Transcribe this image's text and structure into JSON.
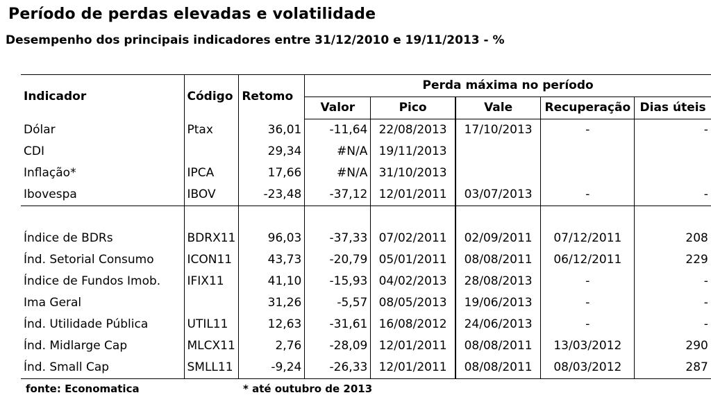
{
  "title": "Período de perdas elevadas e volatilidade",
  "subtitle": "Desempenho dos principais indicadores entre 31/12/2010 e 19/11/2013 - %",
  "headers": {
    "indicador": "Indicador",
    "codigo": "Código",
    "retorno": "Retomo",
    "group": "Perda máxima no período",
    "valor": "Valor",
    "pico": "Pico",
    "vale": "Vale",
    "recuperacao": "Recuperação",
    "dias": "Dias úteis"
  },
  "rows_top": [
    {
      "indicador": "Dólar",
      "codigo": "Ptax",
      "retorno": "36,01",
      "valor": "-11,64",
      "pico": "22/08/2013",
      "vale": "17/10/2013",
      "recuperacao": "-",
      "dias": "-"
    },
    {
      "indicador": "CDI",
      "codigo": "",
      "retorno": "29,34",
      "valor": "#N/A",
      "pico": "19/11/2013",
      "vale": "",
      "recuperacao": "",
      "dias": ""
    },
    {
      "indicador": "Inflação*",
      "codigo": "IPCA",
      "retorno": "17,66",
      "valor": "#N/A",
      "pico": "31/10/2013",
      "vale": "",
      "recuperacao": "",
      "dias": ""
    },
    {
      "indicador": "Ibovespa",
      "codigo": "IBOV",
      "retorno": "-23,48",
      "valor": "-37,12",
      "pico": "12/01/2011",
      "vale": "03/07/2013",
      "recuperacao": "-",
      "dias": "-"
    }
  ],
  "rows_bottom": [
    {
      "indicador": "Índice de BDRs",
      "codigo": "BDRX11",
      "retorno": "96,03",
      "valor": "-37,33",
      "pico": "07/02/2011",
      "vale": "02/09/2011",
      "recuperacao": "07/12/2011",
      "dias": "208"
    },
    {
      "indicador": "Índ. Setorial Consumo",
      "codigo": "ICON11",
      "retorno": "43,73",
      "valor": "-20,79",
      "pico": "05/01/2011",
      "vale": "08/08/2011",
      "recuperacao": "06/12/2011",
      "dias": "229"
    },
    {
      "indicador": "Índice de Fundos Imob.",
      "codigo": "IFIX11",
      "retorno": "41,10",
      "valor": "-15,93",
      "pico": "04/02/2013",
      "vale": "28/08/2013",
      "recuperacao": "-",
      "dias": "-"
    },
    {
      "indicador": "Ima Geral",
      "codigo": "",
      "retorno": "31,26",
      "valor": "-5,57",
      "pico": "08/05/2013",
      "vale": "19/06/2013",
      "recuperacao": "-",
      "dias": "-"
    },
    {
      "indicador": "Índ. Utilidade Pública",
      "codigo": "UTIL11",
      "retorno": "12,63",
      "valor": "-31,61",
      "pico": "16/08/2012",
      "vale": "24/06/2013",
      "recuperacao": "-",
      "dias": "-"
    },
    {
      "indicador": "Índ. Midlarge Cap",
      "codigo": "MLCX11",
      "retorno": "2,76",
      "valor": "-28,09",
      "pico": "12/01/2011",
      "vale": "08/08/2011",
      "recuperacao": "13/03/2012",
      "dias": "290"
    },
    {
      "indicador": "Índ. Small Cap",
      "codigo": "SMLL11",
      "retorno": "-9,24",
      "valor": "-26,33",
      "pico": "12/01/2011",
      "vale": "08/08/2011",
      "recuperacao": "08/03/2012",
      "dias": "287"
    }
  ],
  "footer": {
    "source": "fonte: Economatica",
    "note": "* até outubro de 2013"
  }
}
